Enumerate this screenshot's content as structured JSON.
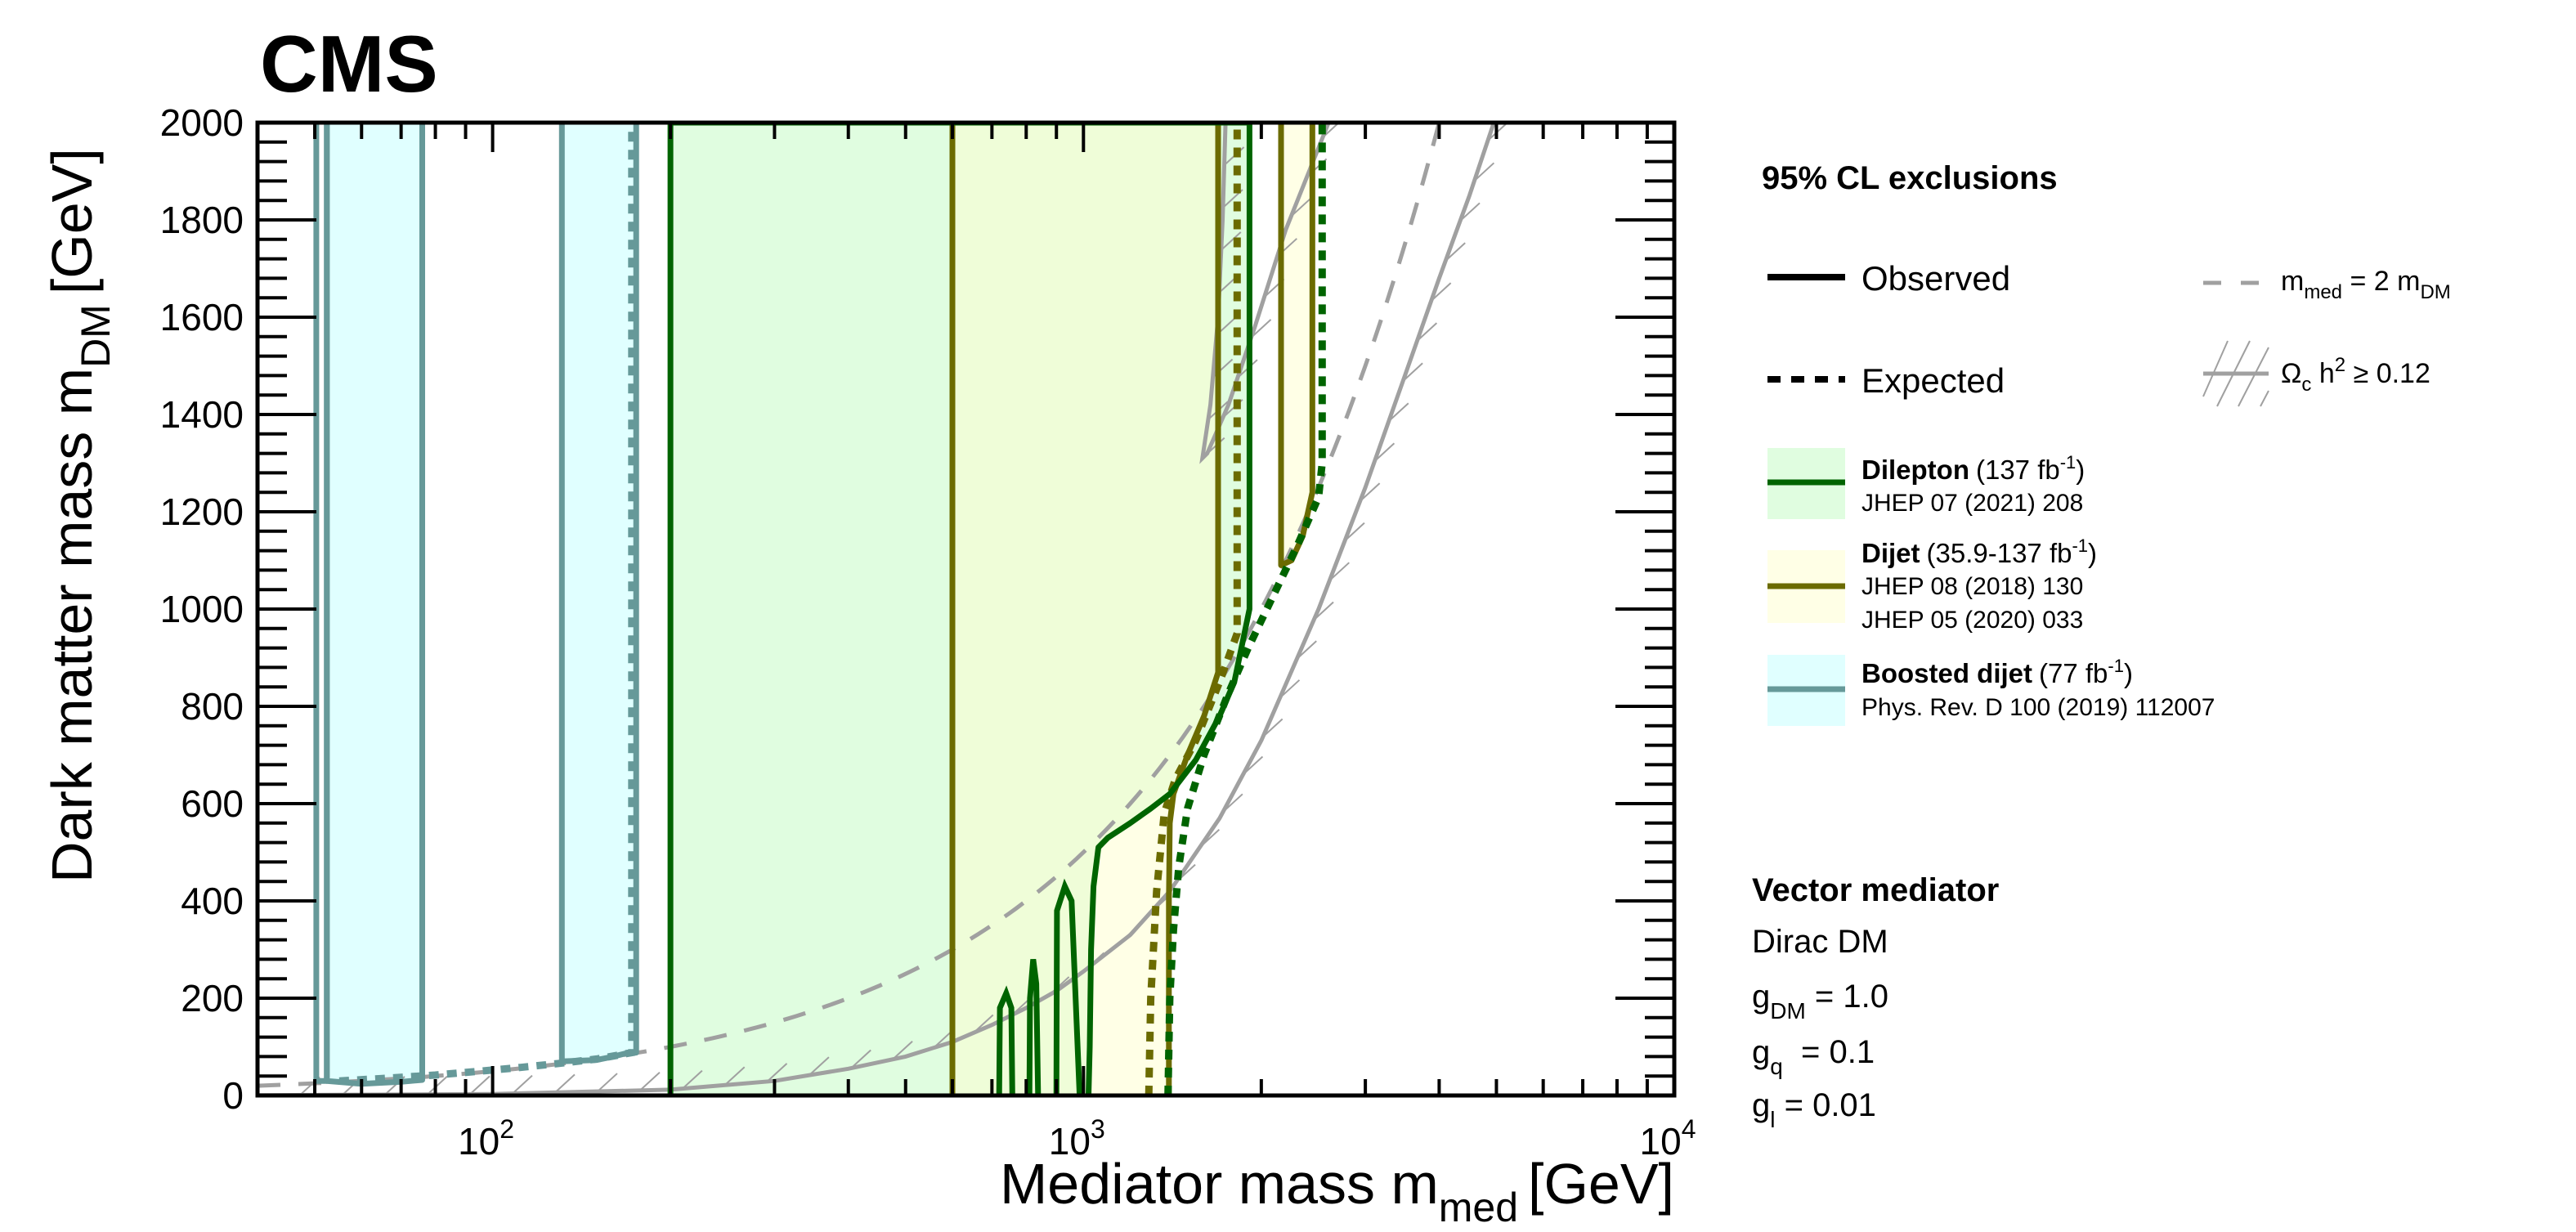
{
  "chart_data": {
    "type": "area",
    "experiment_label": "CMS",
    "xlabel": "Mediator mass m",
    "xlabel_sub": "med",
    "xlabel_unit": "[GeV]",
    "ylabel": "Dark matter mass m",
    "ylabel_sub": "DM",
    "ylabel_unit": "[GeV]",
    "xscale": "log",
    "xlim": [
      40,
      10000
    ],
    "ylim": [
      0,
      2000
    ],
    "xticks": [
      {
        "value": 100,
        "base": "10",
        "exp": "2"
      },
      {
        "value": 1000,
        "base": "10",
        "exp": "3"
      },
      {
        "value": 10000,
        "base": "10",
        "exp": "4"
      }
    ],
    "yticks": [
      0,
      200,
      400,
      600,
      800,
      1000,
      1200,
      1400,
      1600,
      1800,
      2000
    ],
    "colors": {
      "dilepton_line": "#006400",
      "dilepton_fill": "#e0fde0",
      "dijet_line": "#6b6b00",
      "dijet_fill": "#ffffe6",
      "overlap_fill": "#effdd8",
      "boosted_line": "#669999",
      "boosted_fill": "#e0ffff",
      "reference_gray": "#a0a0a0"
    },
    "legend": {
      "title": "95% CL exclusions",
      "placement": "right",
      "styles": [
        {
          "key": "observed",
          "label": "Observed",
          "line": "solid"
        },
        {
          "key": "expected",
          "label": "Expected",
          "line": "dotted"
        }
      ],
      "references": [
        {
          "key": "diagonal",
          "label_main": "m",
          "label_sub1": "med",
          "label_mid": " = 2 m",
          "label_sub2": "DM",
          "line": "dashed"
        },
        {
          "key": "relic",
          "label_main": "Ω",
          "label_sub1": "c",
          "label_mid": " h",
          "label_sup": "2",
          "label_end": " ≥ 0.12",
          "line": "hatched"
        }
      ],
      "analyses": [
        {
          "key": "dilepton",
          "name": "Dilepton",
          "lumi": "(137 fb",
          "lumi_sup": "-1",
          "lumi_end": ")",
          "refs": [
            "JHEP 07 (2021) 208"
          ]
        },
        {
          "key": "dijet",
          "name": "Dijet",
          "lumi": "(35.9-137 fb",
          "lumi_sup": "-1",
          "lumi_end": ")",
          "refs": [
            "JHEP 08 (2018) 130",
            "JHEP 05 (2020) 033"
          ]
        },
        {
          "key": "boosted",
          "name": "Boosted dijet",
          "lumi": "(77 fb",
          "lumi_sup": "-1",
          "lumi_end": ")",
          "refs": [
            "Phys. Rev. D 100 (2019) 112007"
          ]
        }
      ]
    },
    "model": {
      "title": "Vector mediator",
      "line1": "Dirac DM",
      "couplings": [
        {
          "sym": "g",
          "sub": "DM",
          "val": " = 1.0"
        },
        {
          "sym": "g",
          "sub": "q",
          "val": "  = 0.1"
        },
        {
          "sym": "g",
          "sub": "l",
          "val": " = 0.01"
        }
      ]
    },
    "series": [
      {
        "name": "Boosted dijet observed (region 1)",
        "analysis": "boosted",
        "kind": "observed",
        "points": [
          [
            50.3,
            2000
          ],
          [
            50.3,
            30
          ],
          [
            52.4,
            30
          ],
          [
            52.4,
            2000
          ]
        ]
      },
      {
        "name": "Boosted dijet observed (region 2)",
        "analysis": "boosted",
        "kind": "observed",
        "points": [
          [
            52.4,
            2000
          ],
          [
            52.4,
            30
          ],
          [
            60,
            24
          ],
          [
            70,
            28
          ],
          [
            76,
            32
          ],
          [
            76,
            2000
          ]
        ]
      },
      {
        "name": "Boosted dijet observed (region 3)",
        "analysis": "boosted",
        "kind": "observed",
        "points": [
          [
            131,
            2000
          ],
          [
            131,
            70
          ],
          [
            150,
            73
          ],
          [
            160,
            80
          ],
          [
            170,
            88
          ],
          [
            175,
            88
          ],
          [
            175,
            2000
          ]
        ]
      },
      {
        "name": "Boosted dijet expected",
        "analysis": "boosted",
        "kind": "expected",
        "points": [
          [
            55,
            30
          ],
          [
            65,
            35
          ],
          [
            80,
            42
          ],
          [
            95,
            50
          ],
          [
            110,
            57
          ],
          [
            130,
            66
          ],
          [
            150,
            75
          ],
          [
            172,
            88
          ],
          [
            172,
            2000
          ]
        ]
      },
      {
        "name": "Dilepton observed",
        "analysis": "dilepton",
        "kind": "observed",
        "points": [
          [
            200,
            0
          ],
          [
            200,
            2000
          ],
          [
            1910,
            2000
          ],
          [
            1910,
            1000
          ],
          [
            1800,
            850
          ],
          [
            1700,
            780
          ],
          [
            1550,
            690
          ],
          [
            1400,
            620
          ],
          [
            1300,
            590
          ],
          [
            1200,
            560
          ],
          [
            1100,
            530
          ],
          [
            1060,
            510
          ],
          [
            1040,
            430
          ],
          [
            1030,
            300
          ],
          [
            1025,
            100
          ],
          [
            1020,
            0
          ]
        ]
      },
      {
        "name": "Dilepton observed (islands)",
        "analysis": "dilepton",
        "kind": "observed",
        "islands": [
          [
            [
              720,
              0
            ],
            [
              722,
              180
            ],
            [
              740,
              210
            ],
            [
              755,
              180
            ],
            [
              758,
              0
            ]
          ],
          [
            [
              810,
              0
            ],
            [
              812,
              200
            ],
            [
              822,
              280
            ],
            [
              832,
              230
            ],
            [
              838,
              0
            ]
          ],
          [
            [
              900,
              0
            ],
            [
              902,
              380
            ],
            [
              930,
              430
            ],
            [
              955,
              400
            ],
            [
              985,
              0
            ]
          ]
        ]
      },
      {
        "name": "Dilepton expected",
        "analysis": "dilepton",
        "kind": "expected",
        "points": [
          [
            1390,
            0
          ],
          [
            1400,
            200
          ],
          [
            1420,
            340
          ],
          [
            1450,
            470
          ],
          [
            1500,
            590
          ],
          [
            1600,
            700
          ],
          [
            1750,
            820
          ],
          [
            1900,
            920
          ],
          [
            2100,
            1030
          ],
          [
            2300,
            1130
          ],
          [
            2500,
            1230
          ],
          [
            2535,
            1300
          ],
          [
            2535,
            2000
          ]
        ]
      },
      {
        "name": "Dijet observed",
        "analysis": "dijet",
        "kind": "observed",
        "points": [
          [
            600,
            0
          ],
          [
            600,
            2000
          ],
          [
            1690,
            2000
          ],
          [
            1690,
            870
          ],
          [
            1600,
            780
          ],
          [
            1500,
            700
          ],
          [
            1420,
            620
          ],
          [
            1400,
            560
          ],
          [
            1395,
            400
          ],
          [
            1395,
            0
          ]
        ]
      },
      {
        "name": "Dijet observed (high-mass band)",
        "analysis": "dijet",
        "kind": "observed",
        "points": [
          [
            2160,
            2000
          ],
          [
            2160,
            1090
          ],
          [
            2250,
            1100
          ],
          [
            2350,
            1150
          ],
          [
            2440,
            1240
          ],
          [
            2440,
            2000
          ]
        ]
      },
      {
        "name": "Dijet expected",
        "analysis": "dijet",
        "kind": "expected",
        "points": [
          [
            1290,
            0
          ],
          [
            1300,
            200
          ],
          [
            1330,
            420
          ],
          [
            1370,
            580
          ],
          [
            1430,
            650
          ],
          [
            1550,
            730
          ],
          [
            1700,
            850
          ],
          [
            1820,
            950
          ],
          [
            1820,
            2000
          ]
        ]
      },
      {
        "name": "m_med = 2 m_DM",
        "analysis": "reference",
        "kind": "diagonal",
        "function": "y = x / 2"
      },
      {
        "name": "Relic density (lower branch)",
        "analysis": "reference",
        "kind": "relic",
        "points": [
          [
            40,
            0.5
          ],
          [
            100,
            3
          ],
          [
            200,
            12
          ],
          [
            300,
            30
          ],
          [
            400,
            55
          ],
          [
            500,
            80
          ],
          [
            600,
            110
          ],
          [
            700,
            145
          ],
          [
            800,
            180
          ],
          [
            900,
            215
          ],
          [
            1000,
            255
          ],
          [
            1200,
            330
          ],
          [
            1400,
            420
          ],
          [
            1700,
            570
          ],
          [
            2000,
            730
          ],
          [
            2500,
            1000
          ],
          [
            3000,
            1250
          ],
          [
            3500,
            1480
          ],
          [
            4000,
            1680
          ],
          [
            4500,
            1850
          ],
          [
            4950,
            2000
          ]
        ]
      },
      {
        "name": "Relic density (upper island)",
        "analysis": "reference",
        "kind": "relic",
        "points": [
          [
            1740,
            2000
          ],
          [
            1720,
            1800
          ],
          [
            1690,
            1600
          ],
          [
            1640,
            1420
          ],
          [
            1590,
            1310
          ],
          [
            1620,
            1320
          ],
          [
            1760,
            1420
          ],
          [
            1950,
            1580
          ],
          [
            2200,
            1780
          ],
          [
            2600,
            2000
          ]
        ]
      }
    ]
  }
}
